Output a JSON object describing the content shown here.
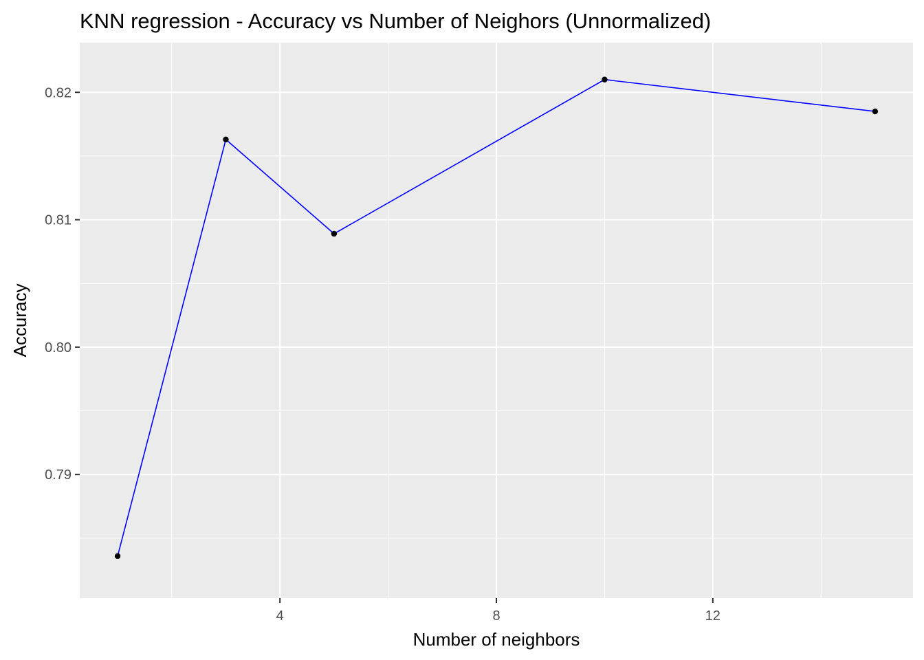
{
  "chart_data": {
    "type": "line",
    "title": "KNN regression - Accuracy vs Number of Neighors (Unnormalized)",
    "xlabel": "Number of neighbors",
    "ylabel": "Accuracy",
    "x": [
      1,
      3,
      5,
      10,
      15
    ],
    "series": [
      {
        "values": [
          0.7836,
          0.8163,
          0.8089,
          0.821,
          0.8185
        ]
      }
    ],
    "xlim": [
      0.3,
      15.7
    ],
    "ylim": [
      0.7803,
      0.8239
    ],
    "x_ticks": [
      4,
      8,
      12
    ],
    "x_tick_labels": [
      "4",
      "8",
      "12"
    ],
    "x_minor_ticks": [
      2,
      6,
      10,
      14
    ],
    "y_ticks": [
      0.79,
      0.8,
      0.81,
      0.82
    ],
    "y_tick_labels": [
      "0.79",
      "0.80",
      "0.81",
      "0.82"
    ],
    "y_minor_ticks": [
      0.785,
      0.795,
      0.805,
      0.815
    ],
    "grid": true,
    "legend": "none",
    "line_color": "#0000ff",
    "point_color": "#000000",
    "panel_background": "#ebebeb",
    "grid_color": "#ffffff"
  }
}
